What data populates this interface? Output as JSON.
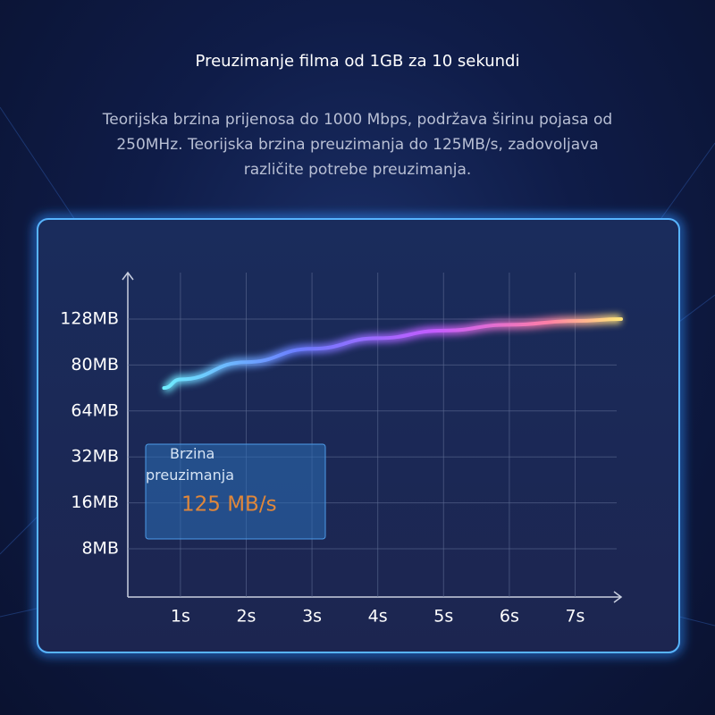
{
  "chart_data": {
    "type": "line",
    "title": "Preuzimanje filma od 1GB za 10 sekundi",
    "subtitle": "Teorijska brzina prijenosa do 1000 Mbps, podržava širinu pojasa od 250MHz. Teorijska brzina preuzimanja do 125MB/s, zadovoljava različite potrebe preuzimanja.",
    "annotation": {
      "label": "Brzina preuzimanja",
      "value_text": "125 MB/s"
    },
    "x": [
      0.75,
      1,
      2,
      3,
      4,
      5,
      6,
      7,
      7.7
    ],
    "series": [
      {
        "color": "#b06cff",
        "values": [
          72,
          75,
          83,
          97,
          108,
          116,
          122,
          126,
          128
        ]
      }
    ],
    "xlim": [
      0.2,
      7.7
    ],
    "xticks": [
      {
        "value": 1,
        "label": "1s"
      },
      {
        "value": 2,
        "label": "2s"
      },
      {
        "value": 3,
        "label": "3s"
      },
      {
        "value": 4,
        "label": "4s"
      },
      {
        "value": 5,
        "label": "5s"
      },
      {
        "value": 6,
        "label": "6s"
      },
      {
        "value": 7,
        "label": "7s"
      }
    ],
    "yticks": [
      {
        "value": 8,
        "label": "8MB"
      },
      {
        "value": 16,
        "label": "16MB"
      },
      {
        "value": 32,
        "label": "32MB"
      },
      {
        "value": 64,
        "label": "64MB"
      },
      {
        "value": 80,
        "label": "80MB"
      },
      {
        "value": 128,
        "label": "128MB"
      }
    ],
    "grid": true
  }
}
